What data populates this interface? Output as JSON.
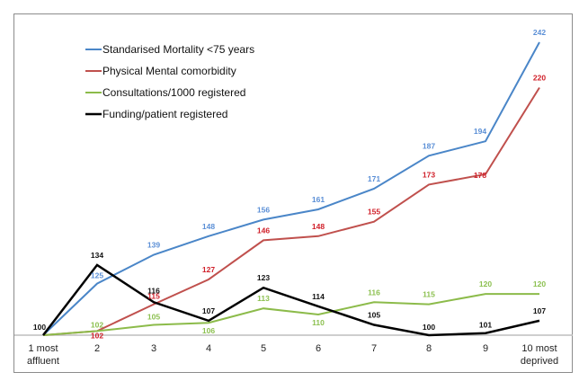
{
  "chart_data": {
    "type": "line",
    "title": "",
    "xlabel": "",
    "ylabel": "",
    "categories": [
      [
        "1 most",
        "affluent"
      ],
      [
        "2"
      ],
      [
        "3"
      ],
      [
        "4"
      ],
      [
        "5"
      ],
      [
        "6"
      ],
      [
        "7"
      ],
      [
        "8"
      ],
      [
        "9"
      ],
      [
        "10 most",
        "deprived"
      ]
    ],
    "ylim": [
      100,
      242
    ],
    "grid": false,
    "legend_position": "top-left",
    "series": [
      {
        "name": "Standarised Mortality <75 years",
        "color": "#4a86c8",
        "label_color": "#5b8fd6",
        "values": [
          100,
          125,
          139,
          148,
          156,
          161,
          171,
          187,
          194,
          242
        ]
      },
      {
        "name": "Physical Mental comorbidity",
        "color": "#c0504d",
        "label_color": "#d0202a",
        "values": [
          100,
          102,
          115,
          127,
          146,
          148,
          155,
          173,
          178,
          220
        ]
      },
      {
        "name": "Consultations/1000 registered",
        "color": "#8cbb4a",
        "label_color": "#8cc050",
        "values": [
          100,
          102,
          105,
          106,
          113,
          110,
          116,
          115,
          120,
          120
        ]
      },
      {
        "name": "Funding/patient registered",
        "color": "#000000",
        "label_color": "#111111",
        "values": [
          100,
          134,
          116,
          107,
          123,
          114,
          105,
          100,
          101,
          107
        ]
      }
    ]
  }
}
